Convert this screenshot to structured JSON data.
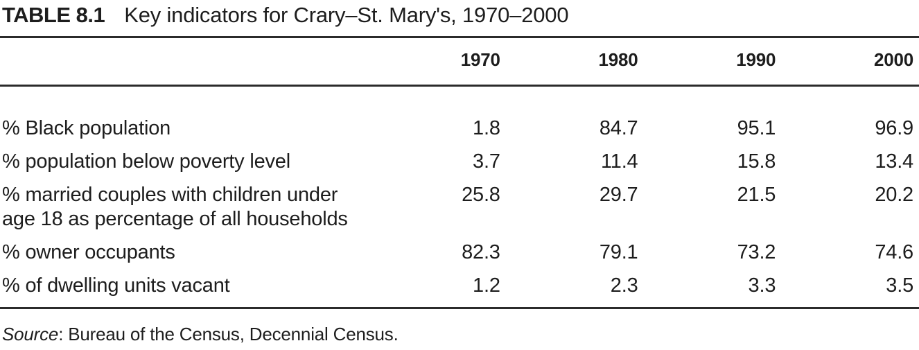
{
  "title": {
    "label": "TABLE 8.1",
    "text": "Key indicators for Crary–St. Mary's, 1970–2000"
  },
  "table": {
    "columns": [
      "1970",
      "1980",
      "1990",
      "2000"
    ],
    "rows": [
      {
        "label": "% Black population",
        "values": [
          "1.8",
          "84.7",
          "95.1",
          "96.9"
        ]
      },
      {
        "label": "% population below poverty level",
        "values": [
          "3.7",
          "11.4",
          "15.8",
          "13.4"
        ]
      },
      {
        "label": "% married couples with children under age 18 as percentage of all households",
        "values": [
          "25.8",
          "29.7",
          "21.5",
          "20.2"
        ]
      },
      {
        "label": "% owner occupants",
        "values": [
          "82.3",
          "79.1",
          "73.2",
          "74.6"
        ]
      },
      {
        "label": "% of dwelling units vacant",
        "values": [
          "1.2",
          "2.3",
          "3.3",
          "3.5"
        ]
      }
    ]
  },
  "source": {
    "label": "Source",
    "rest": ": Bureau of the Census, Decennial Census."
  },
  "colors": {
    "text": "#1d1d1d",
    "rule": "#2b2b2b",
    "background": "#ffffff"
  },
  "chart_data": {
    "type": "table",
    "title": "TABLE 8.1 Key indicators for Crary–St. Mary's, 1970–2000",
    "categories": [
      "1970",
      "1980",
      "1990",
      "2000"
    ],
    "series": [
      {
        "name": "% Black population",
        "values": [
          1.8,
          84.7,
          95.1,
          96.9
        ]
      },
      {
        "name": "% population below poverty level",
        "values": [
          3.7,
          11.4,
          15.8,
          13.4
        ]
      },
      {
        "name": "% married couples with children under age 18 as percentage of all households",
        "values": [
          25.8,
          29.7,
          21.5,
          20.2
        ]
      },
      {
        "name": "% owner occupants",
        "values": [
          82.3,
          79.1,
          73.2,
          74.6
        ]
      },
      {
        "name": "% of dwelling units vacant",
        "values": [
          1.2,
          2.3,
          3.3,
          3.5
        ]
      }
    ],
    "source": "Bureau of the Census, Decennial Census."
  }
}
